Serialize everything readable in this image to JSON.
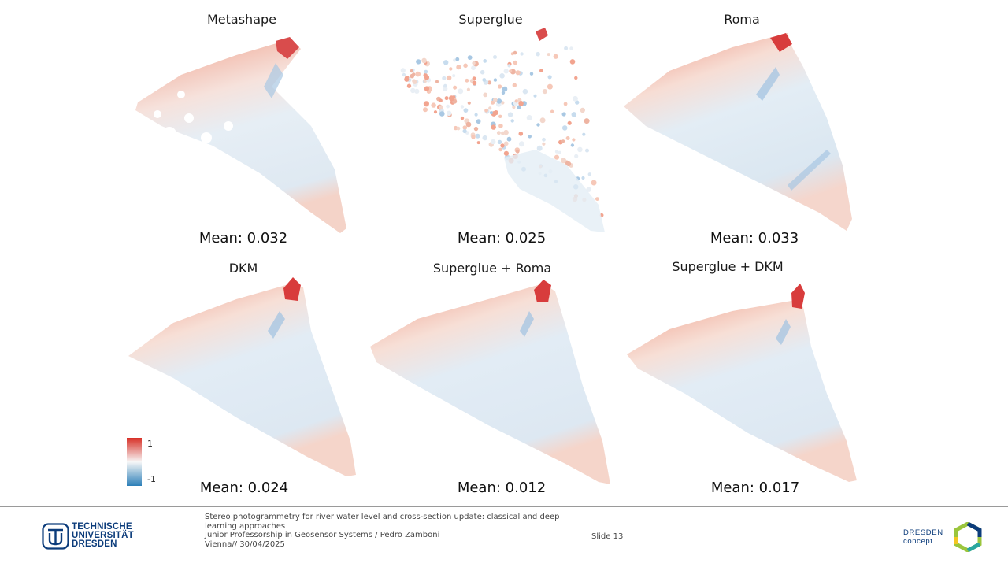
{
  "panels": [
    {
      "title": "Metashape",
      "mean": "Mean: 0.032"
    },
    {
      "title": "Superglue",
      "mean": "Mean: 0.025"
    },
    {
      "title": "Roma",
      "mean": "Mean: 0.033"
    },
    {
      "title": "DKM",
      "mean": "Mean: 0.024"
    },
    {
      "title": "Superglue + Roma",
      "mean": "Mean: 0.012"
    },
    {
      "title": "Superglue + DKM",
      "mean": "Mean: 0.017"
    }
  ],
  "legend": {
    "max": "1",
    "min": "-1",
    "colors": {
      "high": "#d73027",
      "mid": "#f7f7f7",
      "low": "#2c7fb8"
    }
  },
  "footer": {
    "description": "Stereo photogrammetry for river water level and cross-section update: classical and deep learning approaches",
    "author": " Junior Professorship in Geosensor Systems / Pedro Zamboni",
    "location_date": "Vienna// 30/04/2025",
    "slide": "Slide 13"
  },
  "logos": {
    "tud": {
      "line1": "TECHNISCHE",
      "line2": "UNIVERSITÄT",
      "line3": "DRESDEN"
    },
    "dresden_concept": {
      "line1": "DRESDEN",
      "line2": "concept"
    }
  }
}
